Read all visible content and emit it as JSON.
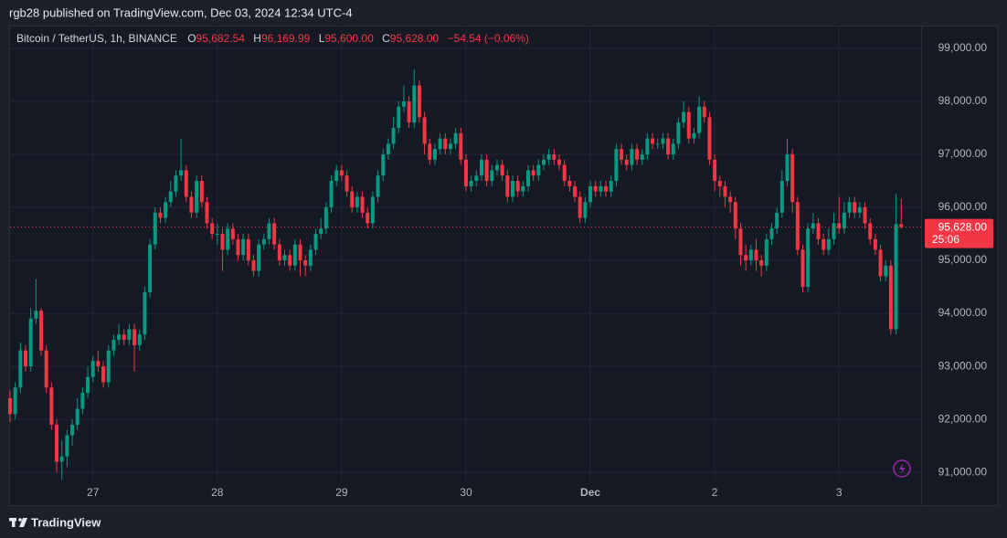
{
  "header": {
    "published": "rgb28 published on TradingView.com, Dec 03, 2024 12:34 UTC-4"
  },
  "legend": {
    "symbol": "Bitcoin / TetherUS, 1h, BINANCE",
    "items": [
      {
        "key": "O",
        "value": "95,682.54"
      },
      {
        "key": "H",
        "value": "96,169.99"
      },
      {
        "key": "L",
        "value": "95,600.00"
      },
      {
        "key": "C",
        "value": "95,628.00"
      }
    ],
    "change": "−54.54 (−0.06%)"
  },
  "footer": {
    "brand": "TradingView"
  },
  "chart_data": {
    "type": "candlestick",
    "up_color": "#089981",
    "down_color": "#f23645",
    "grid": true,
    "last_price": {
      "label": "95,628.00",
      "countdown": "25:06"
    },
    "ylim": [
      90830,
      99430
    ],
    "yticks": [
      {
        "value": 91000,
        "label": "91,000.00"
      },
      {
        "value": 92000,
        "label": "92,000.00"
      },
      {
        "value": 93000,
        "label": "93,000.00"
      },
      {
        "value": 94000,
        "label": "94,000.00"
      },
      {
        "value": 95000,
        "label": "95,000.00"
      },
      {
        "value": 96000,
        "label": "96,000.00"
      },
      {
        "value": 97000,
        "label": "97,000.00"
      },
      {
        "value": 98000,
        "label": "98,000.00"
      },
      {
        "value": 99000,
        "label": "99,000.00"
      }
    ],
    "categories": [
      null,
      null,
      null,
      null,
      null,
      null,
      null,
      null,
      null,
      null,
      null,
      null,
      null,
      null,
      null,
      null,
      "27",
      null,
      null,
      null,
      null,
      null,
      null,
      null,
      null,
      null,
      null,
      null,
      null,
      null,
      null,
      null,
      null,
      null,
      null,
      null,
      null,
      null,
      null,
      null,
      "28",
      null,
      null,
      null,
      null,
      null,
      null,
      null,
      null,
      null,
      null,
      null,
      null,
      null,
      null,
      null,
      null,
      null,
      null,
      null,
      null,
      null,
      null,
      null,
      "29",
      null,
      null,
      null,
      null,
      null,
      null,
      null,
      null,
      null,
      null,
      null,
      null,
      null,
      null,
      null,
      null,
      null,
      null,
      null,
      null,
      null,
      null,
      null,
      "30",
      null,
      null,
      null,
      null,
      null,
      null,
      null,
      null,
      null,
      null,
      null,
      null,
      null,
      null,
      null,
      null,
      null,
      null,
      null,
      null,
      null,
      null,
      null,
      "Dec",
      null,
      null,
      null,
      null,
      null,
      null,
      null,
      null,
      null,
      null,
      null,
      null,
      null,
      null,
      null,
      null,
      null,
      null,
      null,
      null,
      null,
      null,
      null,
      "2",
      null,
      null,
      null,
      null,
      null,
      null,
      null,
      null,
      null,
      null,
      null,
      null,
      null,
      null,
      null,
      null,
      null,
      null,
      null,
      null,
      null,
      null,
      null,
      "3",
      null,
      null,
      null,
      null,
      null,
      null,
      null,
      null,
      null,
      null,
      null,
      null
    ],
    "open": [
      92400,
      92100,
      92600,
      93300,
      93000,
      93900,
      94050,
      93300,
      92600,
      91900,
      91200,
      91300,
      91700,
      91900,
      92200,
      92500,
      92800,
      93100,
      93000,
      92700,
      93300,
      93500,
      93600,
      93500,
      93700,
      93400,
      93600,
      94400,
      95300,
      95900,
      95800,
      96100,
      96300,
      96600,
      96700,
      96200,
      95900,
      96500,
      96100,
      95700,
      95500,
      95500,
      95200,
      95600,
      95400,
      95100,
      95400,
      95000,
      94800,
      95300,
      95400,
      95700,
      95300,
      95000,
      95100,
      94900,
      95300,
      95000,
      94900,
      95200,
      95500,
      95600,
      96000,
      96500,
      96700,
      96600,
      96300,
      96000,
      96200,
      95900,
      95700,
      96200,
      96600,
      97000,
      97200,
      97500,
      97900,
      98000,
      97600,
      98300,
      97700,
      97200,
      96900,
      97100,
      97300,
      97100,
      97200,
      97400,
      96900,
      96400,
      96500,
      96600,
      96900,
      96500,
      96700,
      96800,
      96600,
      96200,
      96500,
      96300,
      96400,
      96700,
      96600,
      96800,
      96900,
      97000,
      96900,
      96800,
      96500,
      96400,
      96200,
      95800,
      96100,
      96400,
      96300,
      96400,
      96300,
      96500,
      97100,
      96900,
      96800,
      97100,
      96900,
      97000,
      97300,
      97200,
      97200,
      97300,
      97000,
      97200,
      97600,
      97800,
      97300,
      97400,
      97900,
      97700,
      96900,
      96500,
      96400,
      96200,
      96100,
      95600,
      95100,
      95000,
      95200,
      95000,
      94900,
      95400,
      95600,
      95900,
      96500,
      97000,
      96100,
      95200,
      94500,
      95600,
      95700,
      95400,
      95200,
      95400,
      95700,
      95600,
      95900,
      96100,
      95900,
      96000,
      95700,
      95400,
      95200,
      94700,
      94900,
      93700,
      95682.54
    ],
    "high": [
      92550,
      92700,
      93450,
      93400,
      94100,
      94650,
      94100,
      93400,
      92700,
      92000,
      91600,
      91800,
      92000,
      92400,
      92600,
      93000,
      93200,
      93300,
      93100,
      93400,
      93600,
      93800,
      93700,
      93800,
      93800,
      93700,
      94500,
      95400,
      96000,
      96000,
      96200,
      96500,
      96700,
      97300,
      96800,
      96300,
      96600,
      96600,
      96200,
      95800,
      95700,
      95600,
      95700,
      95700,
      95500,
      95500,
      95500,
      95100,
      95400,
      95500,
      95800,
      95800,
      95400,
      95200,
      95200,
      95400,
      95400,
      95100,
      95300,
      95600,
      95800,
      96100,
      96600,
      96800,
      96800,
      96700,
      96400,
      96300,
      96300,
      96000,
      96300,
      96700,
      97100,
      97300,
      97700,
      98000,
      98300,
      98100,
      98600,
      98400,
      97800,
      97300,
      97200,
      97400,
      97400,
      97300,
      97500,
      97500,
      97000,
      96600,
      96700,
      97000,
      97000,
      96800,
      96900,
      96900,
      96700,
      96600,
      96600,
      96500,
      96800,
      96800,
      96900,
      97000,
      97100,
      97100,
      97000,
      96900,
      96600,
      96500,
      96300,
      96200,
      96500,
      96500,
      96500,
      96500,
      96600,
      97200,
      97200,
      97000,
      97200,
      97200,
      97100,
      97400,
      97400,
      97300,
      97400,
      97400,
      97300,
      97700,
      98000,
      97900,
      97500,
      98100,
      98000,
      97800,
      97000,
      96600,
      96500,
      96300,
      96200,
      95700,
      95300,
      95300,
      95400,
      95100,
      95500,
      95700,
      96000,
      96700,
      97300,
      97100,
      96200,
      95300,
      95700,
      95900,
      95800,
      95500,
      95600,
      95900,
      96200,
      96100,
      96200,
      96200,
      96100,
      96100,
      95800,
      95500,
      95300,
      95000,
      95000,
      96250,
      96169.99
    ],
    "low": [
      91950,
      92000,
      92500,
      92900,
      92900,
      93800,
      93200,
      92500,
      91800,
      91000,
      90860,
      91100,
      91500,
      91800,
      92100,
      92400,
      92700,
      92900,
      92600,
      92600,
      93200,
      93400,
      93400,
      93400,
      92900,
      93300,
      93500,
      94300,
      95200,
      95700,
      95700,
      96000,
      96200,
      96500,
      96100,
      95800,
      95800,
      96000,
      95600,
      95400,
      95300,
      94800,
      95100,
      95300,
      95000,
      95000,
      94900,
      94700,
      94700,
      95200,
      95300,
      95200,
      94900,
      94900,
      94800,
      94800,
      94700,
      94700,
      94800,
      95100,
      95400,
      95500,
      95900,
      96400,
      96500,
      96200,
      95900,
      95900,
      95800,
      95600,
      95600,
      96100,
      96500,
      96900,
      97100,
      97400,
      97800,
      97500,
      97500,
      97600,
      97000,
      96800,
      96800,
      97000,
      97000,
      97000,
      97100,
      96800,
      96300,
      96300,
      96400,
      96500,
      96400,
      96400,
      96600,
      96500,
      96100,
      96100,
      96200,
      96200,
      96300,
      96500,
      96500,
      96700,
      96800,
      96800,
      96700,
      96400,
      96300,
      96100,
      95700,
      95700,
      96000,
      96200,
      96200,
      96200,
      96200,
      96400,
      96800,
      96700,
      96700,
      96800,
      96800,
      96900,
      97100,
      97100,
      97100,
      96900,
      96900,
      97100,
      97500,
      97200,
      97200,
      97300,
      97600,
      96800,
      96300,
      96200,
      96000,
      95900,
      95400,
      94900,
      94800,
      94900,
      94800,
      94700,
      94800,
      95300,
      95500,
      95800,
      96400,
      95900,
      95100,
      94400,
      94400,
      95500,
      95300,
      95100,
      95100,
      95300,
      95500,
      95500,
      95800,
      95800,
      95800,
      95600,
      95300,
      95100,
      94600,
      94600,
      93600,
      93600,
      95600
    ],
    "close": [
      92100,
      92600,
      93300,
      93000,
      93900,
      94050,
      93300,
      92600,
      91900,
      91200,
      91300,
      91700,
      91900,
      92200,
      92500,
      92800,
      93100,
      93000,
      92700,
      93300,
      93500,
      93600,
      93500,
      93700,
      93400,
      93600,
      94400,
      95300,
      95900,
      95800,
      96100,
      96300,
      96600,
      96700,
      96200,
      95900,
      96500,
      96100,
      95700,
      95500,
      95500,
      95200,
      95600,
      95400,
      95100,
      95400,
      95000,
      94800,
      95300,
      95400,
      95700,
      95300,
      95000,
      95100,
      94900,
      95300,
      95000,
      94900,
      95200,
      95500,
      95600,
      96000,
      96500,
      96700,
      96600,
      96300,
      96000,
      96200,
      95900,
      95700,
      96200,
      96600,
      97000,
      97200,
      97500,
      97900,
      98000,
      97600,
      98300,
      97700,
      97200,
      96900,
      97100,
      97300,
      97100,
      97200,
      97400,
      96900,
      96400,
      96500,
      96600,
      96900,
      96500,
      96700,
      96800,
      96600,
      96200,
      96500,
      96300,
      96400,
      96700,
      96600,
      96800,
      96900,
      97000,
      96900,
      96800,
      96500,
      96400,
      96200,
      95800,
      96100,
      96400,
      96300,
      96400,
      96300,
      96500,
      97100,
      96900,
      96800,
      97100,
      96900,
      97000,
      97300,
      97200,
      97200,
      97300,
      97000,
      97200,
      97600,
      97800,
      97300,
      97400,
      97900,
      97700,
      96900,
      96500,
      96400,
      96200,
      96100,
      95600,
      95100,
      95000,
      95200,
      95000,
      94900,
      95400,
      95600,
      95900,
      96500,
      97000,
      96100,
      95200,
      94500,
      95600,
      95700,
      95400,
      95200,
      95400,
      95700,
      95600,
      95900,
      96100,
      95900,
      96000,
      95700,
      95400,
      95200,
      94700,
      94900,
      93700,
      95682.54,
      95628
    ]
  }
}
